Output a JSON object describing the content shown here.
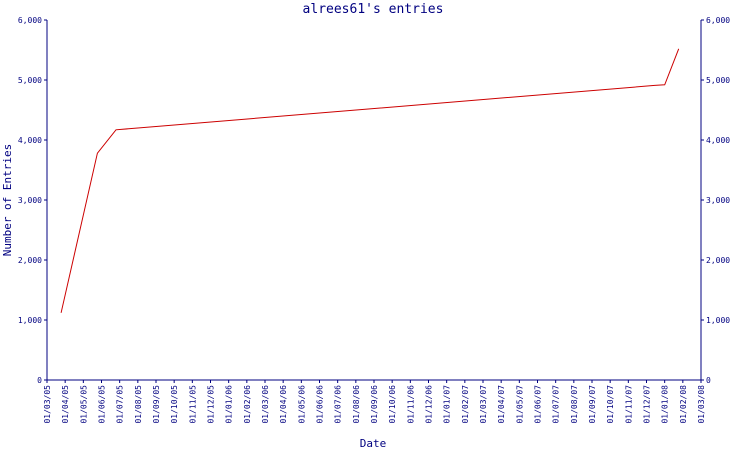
{
  "chart_data": {
    "type": "line",
    "title": "alrees61's entries",
    "xlabel": "Date",
    "ylabel": "Number of Entries",
    "ylim": [
      0,
      6000
    ],
    "yticks": [
      0,
      1000,
      2000,
      3000,
      4000,
      5000,
      6000
    ],
    "ytick_labels": [
      "0",
      "1,000",
      "2,000",
      "3,000",
      "4,000",
      "5,000",
      "6,000"
    ],
    "xtick_labels": [
      "01/03/05",
      "01/04/05",
      "01/05/05",
      "01/06/05",
      "01/07/05",
      "01/08/05",
      "01/09/05",
      "01/10/05",
      "01/11/05",
      "01/12/05",
      "01/01/06",
      "01/02/06",
      "01/03/06",
      "01/04/06",
      "01/05/06",
      "01/06/06",
      "01/07/06",
      "01/08/06",
      "01/09/06",
      "01/10/06",
      "01/11/06",
      "01/12/06",
      "01/01/07",
      "01/02/07",
      "01/03/07",
      "01/04/07",
      "01/05/07",
      "01/06/07",
      "01/07/07",
      "01/08/07",
      "01/09/07",
      "01/10/07",
      "01/11/07",
      "01/12/07",
      "01/01/08",
      "01/02/08",
      "01/03/08"
    ],
    "grid": false,
    "line_color": "#cc0000",
    "axis_color": "#000080",
    "series": [
      {
        "x": [
          "2005-03-25",
          "2005-05-25",
          "2005-06-25",
          "2007-12-15",
          "2008-01-01",
          "2008-01-25"
        ],
        "values": [
          1120,
          3780,
          4170,
          4910,
          4920,
          5520
        ]
      }
    ]
  }
}
